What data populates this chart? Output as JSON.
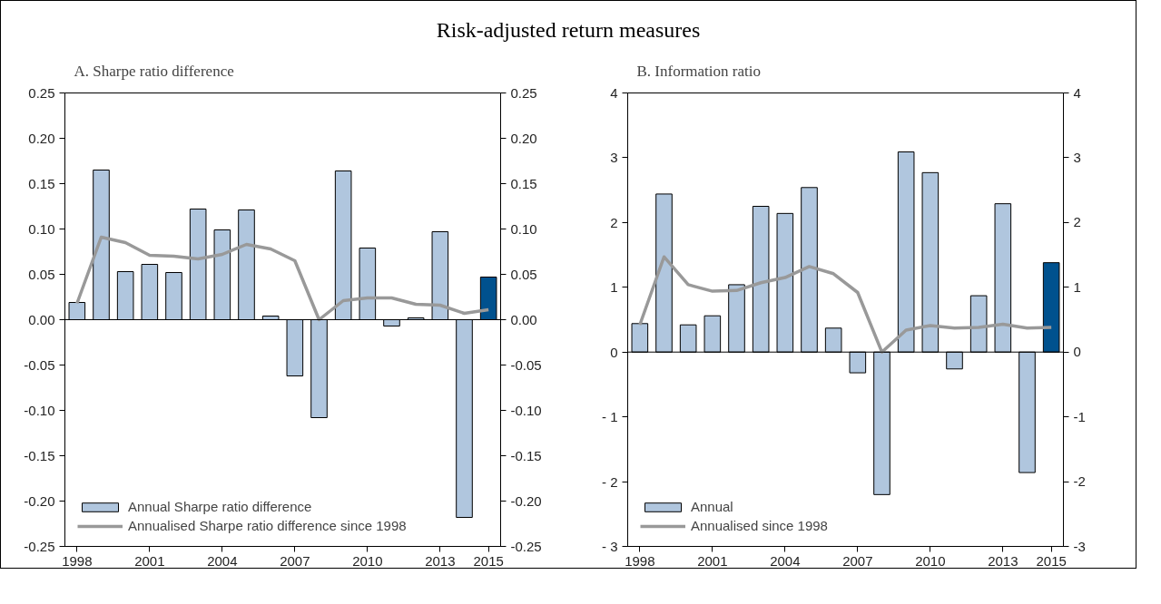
{
  "chart_data": [
    {
      "type": "bar",
      "title": "Risk-adjusted return measures",
      "subtitle": "A. Sharpe ratio difference",
      "x": [
        1998,
        1999,
        2000,
        2001,
        2002,
        2003,
        2004,
        2005,
        2006,
        2007,
        2008,
        2009,
        2010,
        2011,
        2012,
        2013,
        2014,
        2015
      ],
      "series": [
        {
          "name": "Annual Sharpe ratio difference",
          "colors": [
            "#b0c6de",
            "#b0c6de",
            "#b0c6de",
            "#b0c6de",
            "#b0c6de",
            "#b0c6de",
            "#b0c6de",
            "#b0c6de",
            "#b0c6de",
            "#b0c6de",
            "#b0c6de",
            "#b0c6de",
            "#b0c6de",
            "#b0c6de",
            "#b0c6de",
            "#b0c6de",
            "#b0c6de",
            "#00518e"
          ],
          "values": [
            0.019,
            0.165,
            0.053,
            0.061,
            0.052,
            0.122,
            0.099,
            0.121,
            0.004,
            -0.062,
            -0.108,
            0.164,
            0.079,
            -0.007,
            0.002,
            0.097,
            -0.218,
            0.047
          ]
        },
        {
          "name": "Annualised Sharpe ratio difference since 1998",
          "type": "line",
          "color": "#999999",
          "values": [
            0.018,
            0.091,
            0.085,
            0.071,
            0.07,
            0.067,
            0.072,
            0.083,
            0.078,
            0.065,
            0.0,
            0.021,
            0.024,
            0.024,
            0.017,
            0.016,
            0.007,
            0.011
          ]
        }
      ],
      "xlim": [
        1997.5,
        2015.5
      ],
      "xticks": [
        1998,
        2001,
        2004,
        2007,
        2010,
        2013,
        2015
      ],
      "ylim": [
        -0.25,
        0.25
      ],
      "yticks": [
        0.25,
        {
          "value": 0.2,
          "label": "0.20"
        },
        0.15,
        {
          "value": 0.1,
          "label": "0.10"
        },
        0.05,
        {
          "value": 0,
          "label": "0.00"
        },
        -0.05,
        {
          "value": -0.1,
          "label": "-0.10"
        },
        -0.15,
        {
          "value": -0.2,
          "label": "-0.20"
        },
        -0.25
      ],
      "y2lim": [
        -0.25,
        0.25
      ],
      "y2ticks": [
        0.25,
        {
          "value": 0.2,
          "label": "0.20"
        },
        0.15,
        {
          "value": 0.1,
          "label": "0.10"
        },
        0.05,
        {
          "value": 0,
          "label": "0.00"
        },
        -0.05,
        {
          "value": -0.1,
          "label": "-0.10"
        },
        -0.15,
        {
          "value": -0.2,
          "label": "-0.20"
        },
        -0.25
      ],
      "ref_lines": [
        {
          "axis": "y",
          "value": 0,
          "color": "#000000"
        }
      ],
      "grid": false,
      "legend": "bottom left"
    },
    {
      "type": "bar",
      "subtitle": "B. Information ratio",
      "x": [
        1998,
        1999,
        2000,
        2001,
        2002,
        2003,
        2004,
        2005,
        2006,
        2007,
        2008,
        2009,
        2010,
        2011,
        2012,
        2013,
        2014,
        2015
      ],
      "series": [
        {
          "name": "Annual",
          "colors": [
            "#b0c6de",
            "#b0c6de",
            "#b0c6de",
            "#b0c6de",
            "#b0c6de",
            "#b0c6de",
            "#b0c6de",
            "#b0c6de",
            "#b0c6de",
            "#b0c6de",
            "#b0c6de",
            "#b0c6de",
            "#b0c6de",
            "#b0c6de",
            "#b0c6de",
            "#b0c6de",
            "#b0c6de",
            "#00518e"
          ],
          "values": [
            0.44,
            2.44,
            0.42,
            0.56,
            1.04,
            2.25,
            2.14,
            2.54,
            0.37,
            -0.32,
            -2.2,
            3.09,
            2.77,
            -0.26,
            0.87,
            2.29,
            -1.86,
            1.38
          ]
        },
        {
          "name": "Annualised since 1998",
          "type": "line",
          "color": "#999999",
          "values": [
            0.42,
            1.47,
            1.04,
            0.94,
            0.95,
            1.07,
            1.15,
            1.32,
            1.21,
            0.92,
            0.0,
            0.34,
            0.41,
            0.37,
            0.38,
            0.43,
            0.37,
            0.38
          ]
        }
      ],
      "xlim": [
        1997.5,
        2015.5
      ],
      "xticks": [
        1998,
        2001,
        2004,
        2007,
        2010,
        2013,
        2015
      ],
      "ylim": [
        -3,
        4
      ],
      "yticks": [
        4,
        3,
        2,
        1,
        0,
        {
          "value": -1,
          "label": "- 1"
        },
        {
          "value": -2,
          "label": "- 2"
        },
        {
          "value": -3,
          "label": "- 3"
        }
      ],
      "y2lim": [
        -3,
        4
      ],
      "y2ticks": [
        4,
        3,
        2,
        1,
        0,
        -1,
        -2,
        -3
      ],
      "ref_lines": [
        {
          "axis": "y",
          "value": 0,
          "color": "#000000"
        }
      ],
      "grid": false,
      "legend": "bottom left"
    }
  ]
}
